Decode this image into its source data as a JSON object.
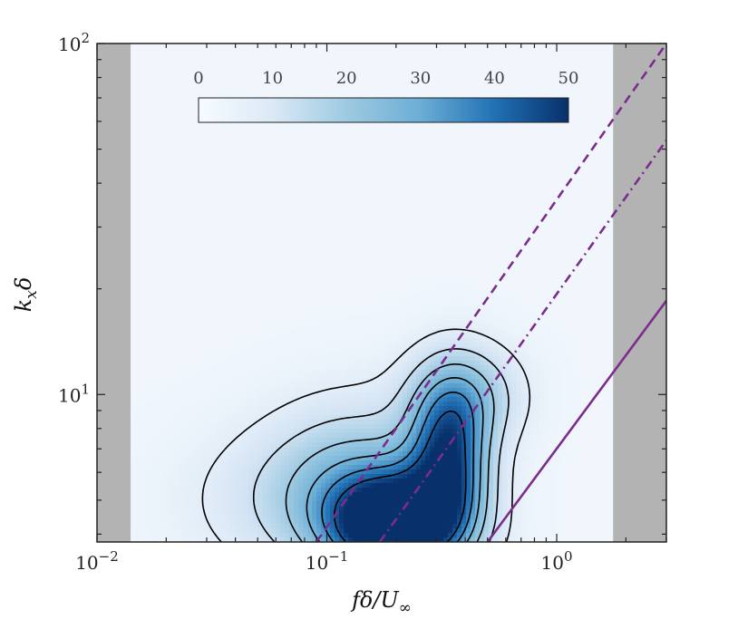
{
  "chart_data": {
    "type": "heatmap",
    "title": "",
    "x_scale": "log",
    "y_scale": "log",
    "xlim": [
      0.01,
      3.0
    ],
    "ylim": [
      3.8,
      100
    ],
    "xlabel": "fδ/U∞",
    "ylabel": "kxδ",
    "x_ticks": [
      {
        "value": 0.01,
        "base": "10",
        "exp": "−2"
      },
      {
        "value": 0.1,
        "base": "10",
        "exp": "−1"
      },
      {
        "value": 1,
        "base": "10",
        "exp": "0"
      }
    ],
    "y_ticks": [
      {
        "value": 10,
        "base": "10",
        "exp": "1"
      },
      {
        "value": 100,
        "base": "10",
        "exp": "2"
      }
    ],
    "data_window": {
      "x": [
        0.014,
        1.75
      ],
      "y": [
        3.8,
        100
      ]
    },
    "masked_color": "#b3b3b3",
    "colormap": "Blues",
    "colorbar": {
      "position": "top",
      "range": [
        0,
        50
      ],
      "ticks": [
        "0",
        "10",
        "20",
        "30",
        "40",
        "50"
      ]
    },
    "blobs": [
      {
        "x": 0.2,
        "y": 4.2,
        "sx": 0.2,
        "sy": 0.1,
        "amp": 55
      },
      {
        "x": 0.34,
        "y": 6.5,
        "sx": 0.12,
        "sy": 0.15,
        "amp": 40
      },
      {
        "x": 0.14,
        "y": 5.6,
        "sx": 0.26,
        "sy": 0.16,
        "amp": 18
      },
      {
        "x": 0.4,
        "y": 10.0,
        "sx": 0.17,
        "sy": 0.1,
        "amp": 18
      },
      {
        "x": 0.08,
        "y": 5.0,
        "sx": 0.35,
        "sy": 0.15,
        "amp": 10
      }
    ],
    "contour_levels": [
      5,
      12,
      20,
      28,
      36,
      44
    ],
    "reference_lines": [
      {
        "style": "dashed",
        "color": "#7b2d8e",
        "points": [
          [
            0.09,
            3.8
          ],
          [
            3.0,
            100
          ]
        ]
      },
      {
        "style": "dashdot",
        "color": "#7b2d8e",
        "points": [
          [
            0.17,
            3.8
          ],
          [
            3.0,
            53
          ]
        ]
      },
      {
        "style": "solid",
        "color": "#7b2d8e",
        "points": [
          [
            0.5,
            3.8
          ],
          [
            3.0,
            18.5
          ]
        ]
      }
    ]
  }
}
